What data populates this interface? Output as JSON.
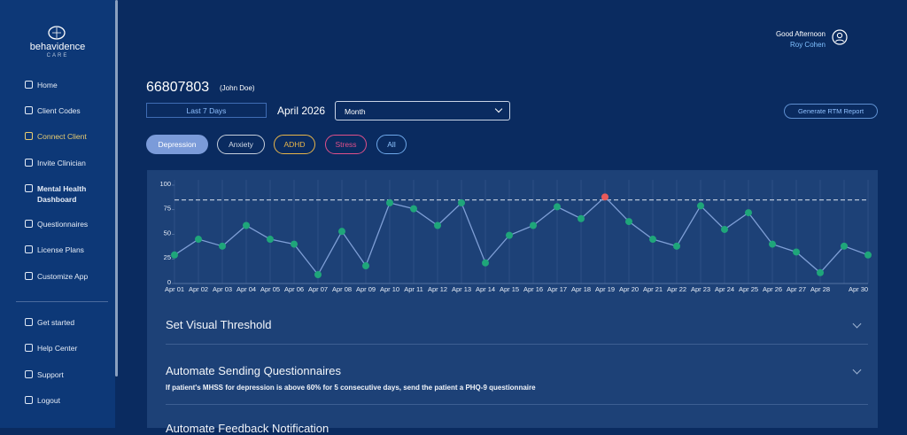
{
  "brand": {
    "name": "behavidence",
    "sub": "CARE"
  },
  "nav": [
    "Home",
    "Client Codes",
    "Connect Client",
    "Invite Clinician",
    "Mental Health Dashboard",
    "Questionnaires",
    "License Plans",
    "Customize App"
  ],
  "nav_bottom": [
    "Get started",
    "Help Center",
    "Support",
    "Logout"
  ],
  "header": {
    "greeting": "Good Afternoon",
    "user": "Roy Cohen"
  },
  "patient": {
    "id": "66807803",
    "name": "(John Doe)"
  },
  "controls": {
    "range": "Last 7 Days",
    "month": "April 2026",
    "select": "Month",
    "report": "Generate RTM Report"
  },
  "filters": [
    "Depression",
    "Anxiety",
    "ADHD",
    "Stress",
    "All"
  ],
  "chart": {
    "type": "line",
    "categories": [
      "Apr 01",
      "Apr 02",
      "Apr 03",
      "Apr 04",
      "Apr 05",
      "Apr 06",
      "Apr 07",
      "Apr 08",
      "Apr 09",
      "Apr 10",
      "Apr 11",
      "Apr 12",
      "Apr 13",
      "Apr 14",
      "Apr 15",
      "Apr 16",
      "Apr 17",
      "Apr 18",
      "Apr 19",
      "Apr 20",
      "Apr 21",
      "Apr 22",
      "Apr 23",
      "Apr 24",
      "Apr 25",
      "Apr 26",
      "Apr 27",
      "Apr 28",
      null,
      "Apr 30"
    ],
    "values": [
      29,
      45,
      38,
      59,
      45,
      40,
      9,
      53,
      18,
      82,
      76,
      59,
      82,
      21,
      49,
      59,
      78,
      66,
      88,
      63,
      45,
      38,
      79,
      55,
      72,
      40,
      32,
      11,
      38,
      29
    ],
    "ylim": [
      0,
      100
    ],
    "yticks": [
      0,
      25,
      50,
      75,
      100
    ],
    "threshold": 85,
    "color": "#7f9fd6",
    "point_color": "#1fa67a",
    "alert_color": "#e85a5a"
  },
  "sections": [
    {
      "title": "Set Visual Threshold"
    },
    {
      "title": "Automate Sending Questionnaires",
      "text": "If patient's MHSS for depression is above 60% for 5 consecutive days, send the patient a PHQ-9 questionnaire"
    },
    {
      "title": "Automate Feedback Notification"
    }
  ]
}
